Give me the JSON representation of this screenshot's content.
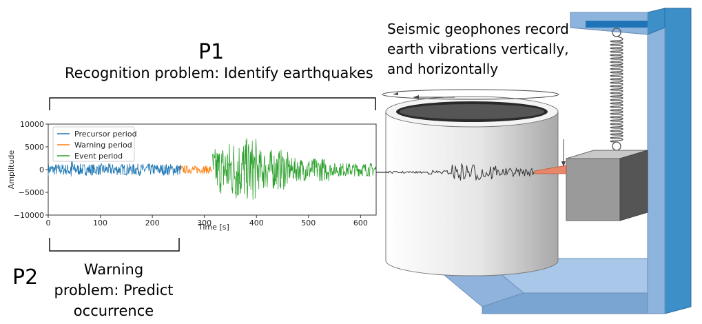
{
  "p1": {
    "title": "P1",
    "description": "Recognition problem: Identify earthquakes"
  },
  "p2": {
    "title": "P2",
    "description": "Warning problem: Predict occurrence"
  },
  "geophone_note": "Seismic geophones record earth vibrations vertically, and horizontally",
  "colors": {
    "precursor": "#1f77b4",
    "warning": "#ff7f0e",
    "event": "#2ca02c",
    "frame": "#3d8fc8",
    "frame_light": "#a9c7e8",
    "needle": "#e8866a"
  },
  "chart_data": {
    "type": "line",
    "xlabel": "Time [s]",
    "ylabel": "Amplitude",
    "xlim": [
      0,
      630
    ],
    "ylim": [
      -10000,
      10000
    ],
    "x_ticks": [
      "0",
      "100",
      "200",
      "300",
      "400",
      "500",
      "600"
    ],
    "y_ticks": [
      "10000",
      "5000",
      "0",
      "−5000",
      "−10000"
    ],
    "legend_position": "top-left",
    "series": [
      {
        "name": "Precursor period",
        "range": [
          0,
          255
        ],
        "color": "#1f77b4"
      },
      {
        "name": "Warning period",
        "range": [
          255,
          315
        ],
        "color": "#ff7f0e"
      },
      {
        "name": "Event period",
        "range": [
          315,
          630
        ],
        "color": "#2ca02c"
      }
    ]
  }
}
